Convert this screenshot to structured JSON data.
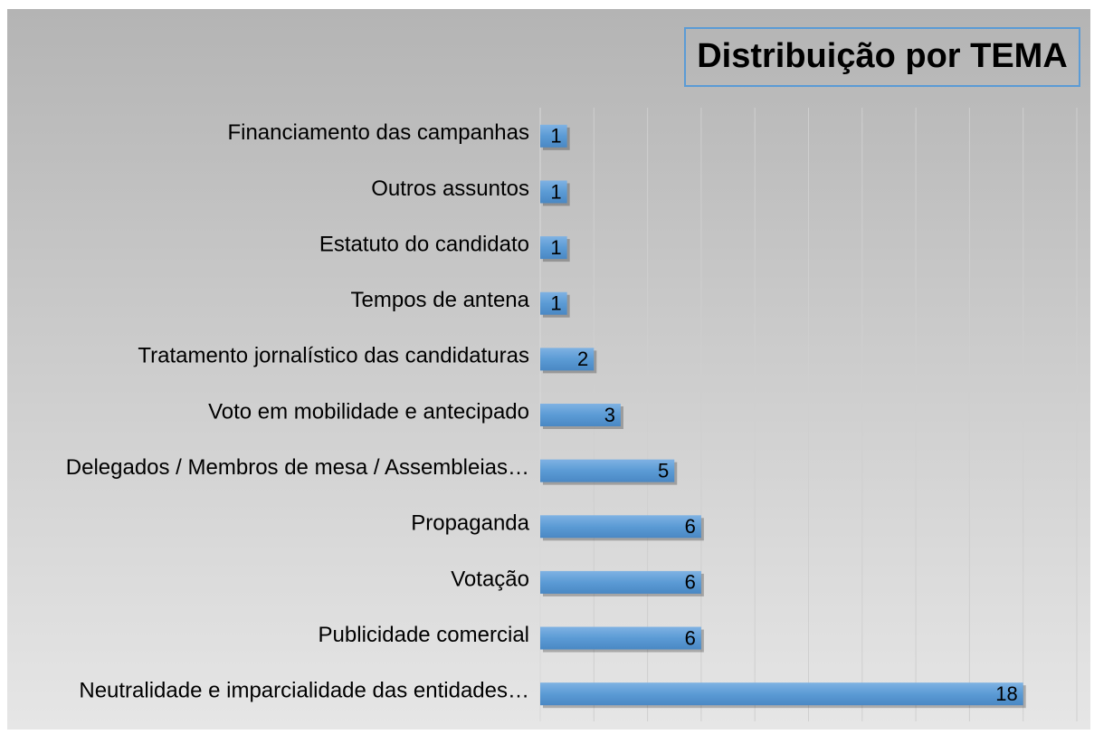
{
  "chart_data": {
    "type": "hbar",
    "title": "Distribuição por TEMA",
    "categories": [
      "Financiamento das campanhas",
      "Outros assuntos",
      "Estatuto do candidato",
      "Tempos de antena",
      "Tratamento jornalístico das candidaturas",
      "Voto em mobilidade e antecipado",
      "Delegados / Membros de mesa / Assembleias…",
      "Propaganda",
      "Votação",
      "Publicidade comercial",
      "Neutralidade e imparcialidade das entidades…"
    ],
    "values": [
      1,
      1,
      1,
      1,
      2,
      3,
      5,
      6,
      6,
      6,
      18
    ],
    "color": "#5b9bd5",
    "xlim": [
      0,
      20
    ],
    "xticks": [
      0,
      2,
      4,
      6,
      8,
      10,
      12,
      14,
      16,
      18,
      20
    ],
    "grid": true
  }
}
